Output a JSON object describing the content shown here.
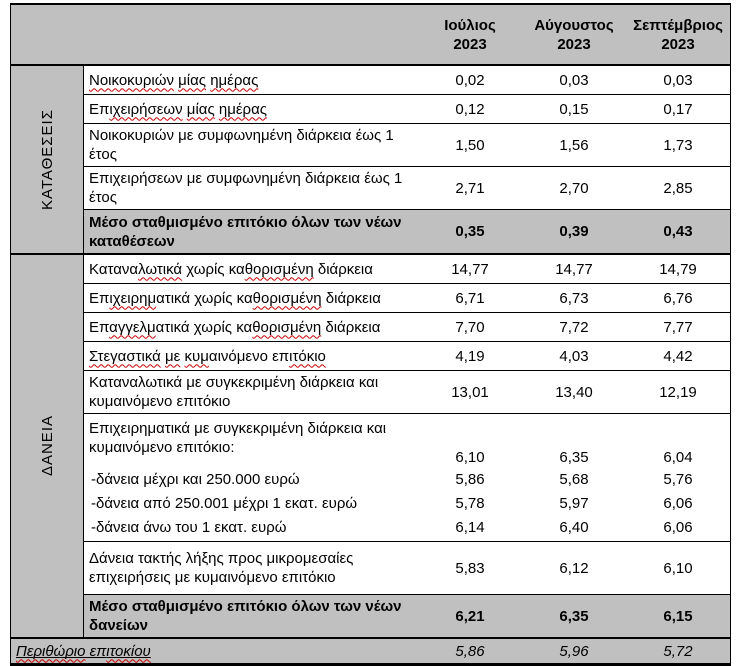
{
  "colors": {
    "shading_gray": "#c0c0c0",
    "border_black": "#000000",
    "squiggle_red": "#c80000"
  },
  "header": {
    "cols": [
      {
        "month": "Ιούλιος",
        "year": "2023"
      },
      {
        "month": "Αύγουστος",
        "year": "2023"
      },
      {
        "month": "Σεπτέμβριος",
        "year": "2023"
      }
    ]
  },
  "sections": [
    {
      "label": "ΚΑΤΑΘΕΣΕΙΣ",
      "rows": [
        {
          "label": [
            {
              "t": "Νοικοκυριών",
              "sq": true
            },
            {
              "t": " "
            },
            {
              "t": "μίας",
              "sq": true
            },
            {
              "t": " "
            },
            {
              "t": "ημέρας",
              "sq": true
            }
          ],
          "values": [
            "0,02",
            "0,03",
            "0,03"
          ]
        },
        {
          "label": [
            {
              "t": "Επ"
            },
            {
              "t": "ιχειρήσεων",
              "sq": true
            },
            {
              "t": " "
            },
            {
              "t": "μίας",
              "sq": true
            },
            {
              "t": " "
            },
            {
              "t": "ημέρας",
              "sq": true
            }
          ],
          "values": [
            "0,12",
            "0,15",
            "0,17"
          ]
        },
        {
          "label": [
            {
              "t": "Νοικοκυριών με συμφωνημένη διάρκεια έως 1 έτος"
            }
          ],
          "values": [
            "1,50",
            "1,56",
            "1,73"
          ]
        },
        {
          "label": [
            {
              "t": "Επιχειρήσεων με συμφωνημένη διάρκεια έως 1 έτος"
            }
          ],
          "values": [
            "2,71",
            "2,70",
            "2,85"
          ]
        },
        {
          "label": [
            {
              "t": "Μέσο σταθμισμένο επιτόκιο όλων των νέων καταθέσεων"
            }
          ],
          "values": [
            "0,35",
            "0,39",
            "0,43"
          ],
          "summary": true
        }
      ]
    },
    {
      "label": "ΔΑΝΕΙΑ",
      "rows": [
        {
          "label": [
            {
              "t": "Κατανα"
            },
            {
              "t": "λωτικά",
              "sq": true
            },
            {
              "t": " χωρίς κα"
            },
            {
              "t": "θορισμένη",
              "sq": true
            },
            {
              "t": " διάρκεια"
            }
          ],
          "values": [
            "14,77",
            "14,77",
            "14,79"
          ]
        },
        {
          "label": [
            {
              "t": "Επ"
            },
            {
              "t": "ιχειρημ",
              "sq": true
            },
            {
              "t": "ατικά χωρίς κα"
            },
            {
              "t": "θορισμένη",
              "sq": true
            },
            {
              "t": " διάρκεια"
            }
          ],
          "values": [
            "6,71",
            "6,73",
            "6,76"
          ]
        },
        {
          "label": [
            {
              "t": "Επ"
            },
            {
              "t": "αγγελμ",
              "sq": true
            },
            {
              "t": "ατικά χωρίς κα"
            },
            {
              "t": "θορισμένη",
              "sq": true
            },
            {
              "t": " διάρκεια"
            }
          ],
          "values": [
            "7,70",
            "7,72",
            "7,77"
          ]
        },
        {
          "label": [
            {
              "t": "Στεγαστικά",
              "sq": true
            },
            {
              "t": " "
            },
            {
              "t": "με",
              "sq": true
            },
            {
              "t": " "
            },
            {
              "t": "κυμ",
              "sq": true
            },
            {
              "t": "αινόμενο επ"
            },
            {
              "t": "ιτόκιο",
              "sq": true
            }
          ],
          "values": [
            "4,19",
            "4,03",
            "4,42"
          ]
        },
        {
          "label": [
            {
              "t": "Καταναλωτικά με συγκεκριμένη διάρκεια και κυμαινόμενο επιτόκιο"
            }
          ],
          "values": [
            "13,01",
            "13,40",
            "12,19"
          ]
        },
        {
          "group": true,
          "label": [
            {
              "t": "Επιχειρηματικά με συγκεκριμένη διάρκεια και κυμαινόμενο επιτόκιο:"
            }
          ],
          "values": [
            "6,10",
            "6,35",
            "6,04"
          ],
          "subrows": [
            {
              "label": [
                {
                  "t": "-δάνεια μέχρι και 250.000 ευρώ"
                }
              ],
              "values": [
                "5,86",
                "5,68",
                "5,76"
              ]
            },
            {
              "label": [
                {
                  "t": "-δάνεια από 250.001 μέχρι 1 εκατ. ευρώ"
                }
              ],
              "values": [
                "5,78",
                "5,97",
                "6,06"
              ]
            },
            {
              "label": [
                {
                  "t": "-δάνεια άνω του 1 εκατ. ευρώ"
                }
              ],
              "values": [
                "6,14",
                "6,40",
                "6,06"
              ]
            }
          ]
        },
        {
          "label": [
            {
              "t": "Δάνεια τακτής λήξης προς μικρομεσαίες επιχειρήσεις με κυμαινόμενο επιτόκιο"
            }
          ],
          "values": [
            "5,83",
            "6,12",
            "6,10"
          ]
        },
        {
          "label": [
            {
              "t": "Μέσο σταθμισμένο επιτόκιο όλων των νέων δανείων"
            }
          ],
          "values": [
            "6,21",
            "6,35",
            "6,15"
          ],
          "summary": true
        }
      ]
    }
  ],
  "footer": {
    "label": [
      {
        "t": "Περιθώριο",
        "sq": true
      },
      {
        "t": " επ"
      },
      {
        "t": "ιτοκίου",
        "sq": true
      }
    ],
    "values": [
      "5,86",
      "5,96",
      "5,72"
    ]
  }
}
